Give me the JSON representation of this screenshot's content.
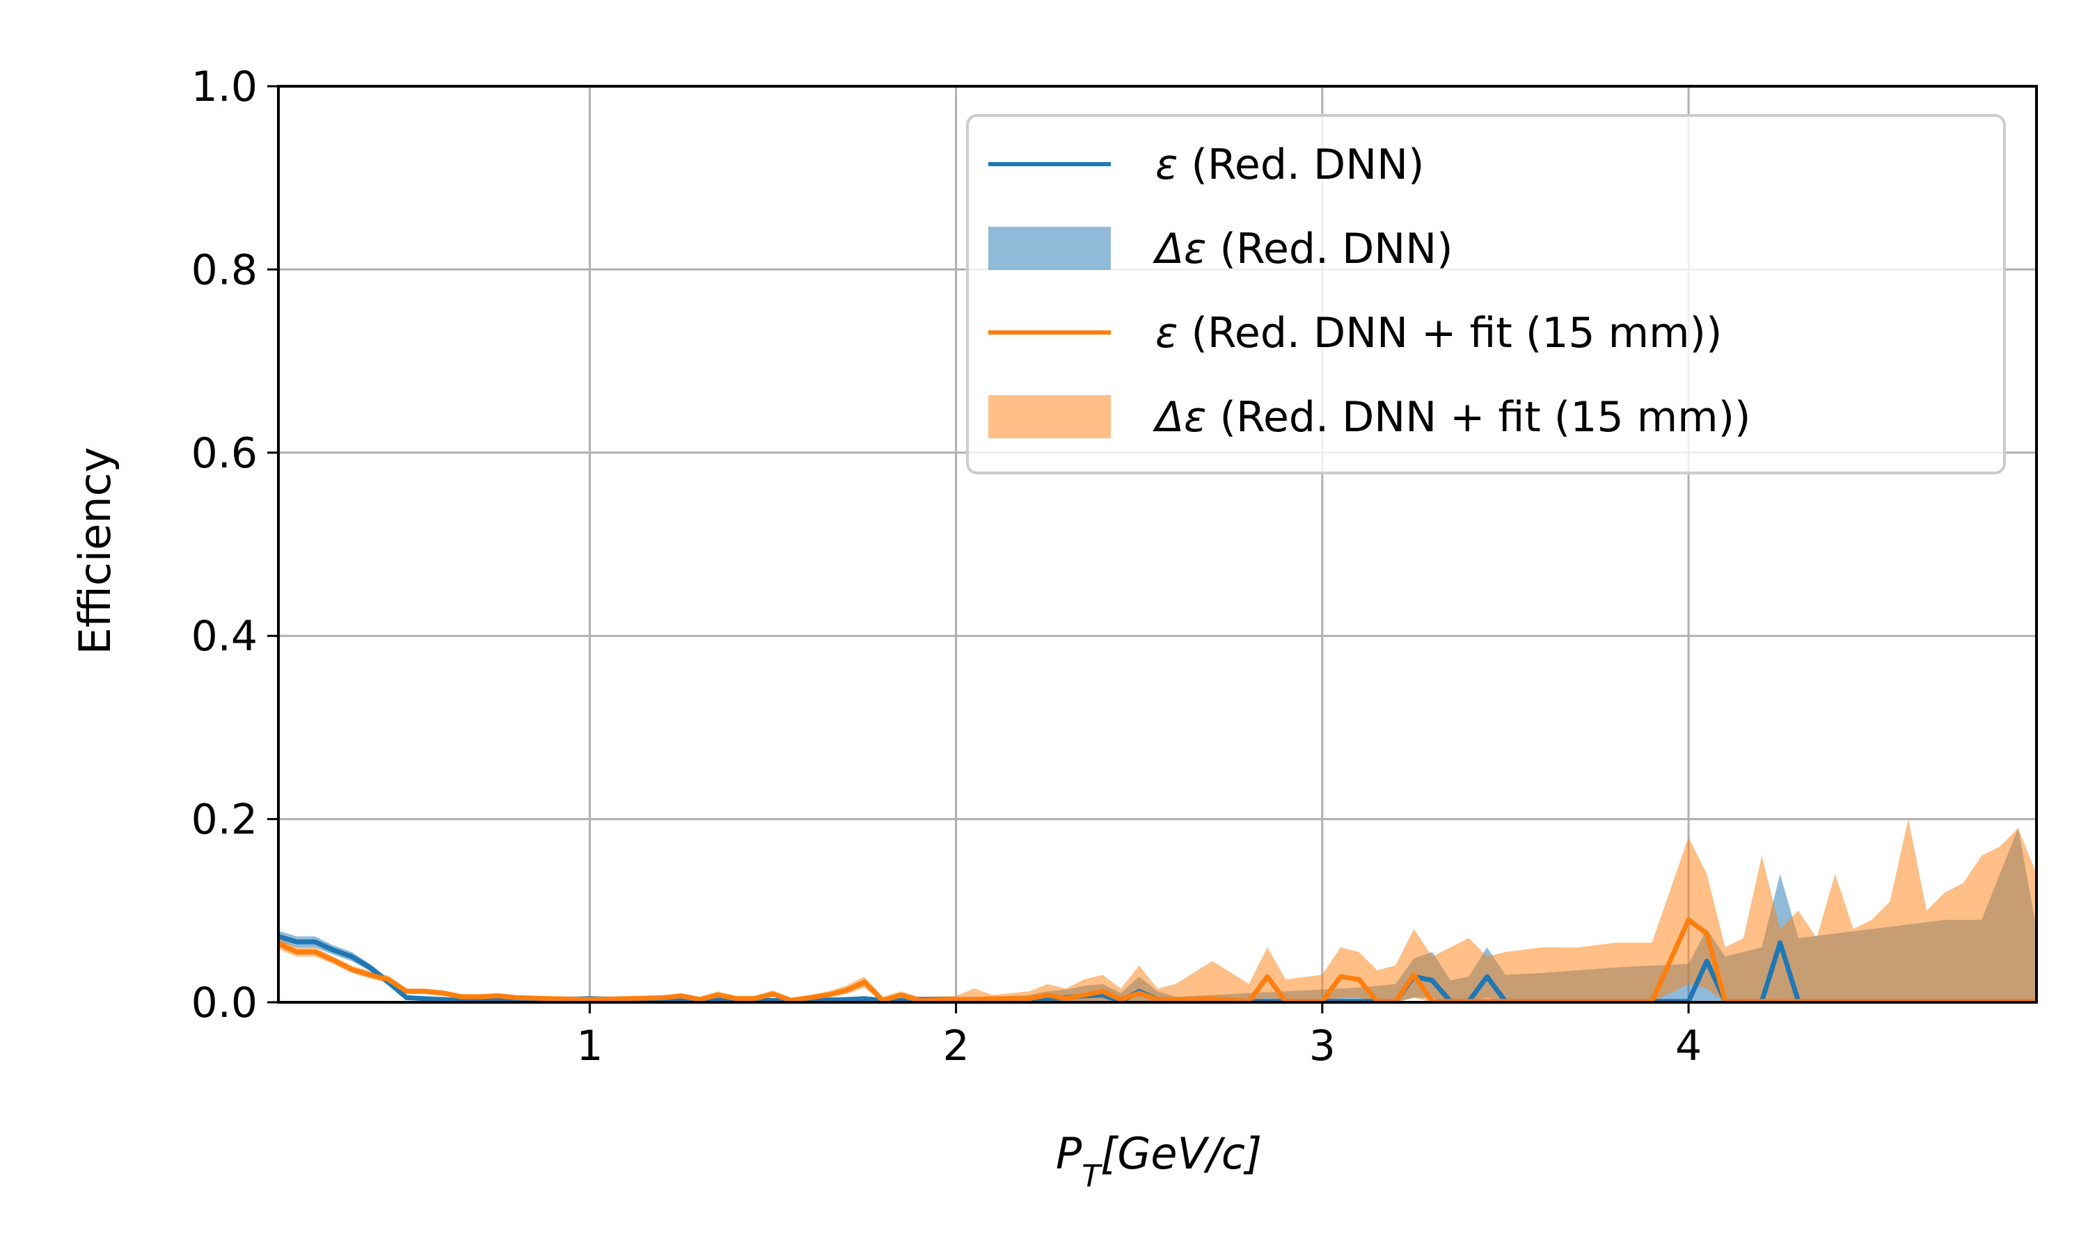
{
  "chart_data": {
    "type": "line",
    "title": "",
    "xlabel": "P_T[GeV/c]",
    "xlabel_main": "P",
    "xlabel_sub": "T",
    "xlabel_rest": "[GeV/c]",
    "ylabel": "Efficiency",
    "xlim": [
      0.15,
      4.95
    ],
    "ylim": [
      0.0,
      1.0
    ],
    "xticks": [
      1,
      2,
      3,
      4
    ],
    "xtick_labels": [
      "1",
      "2",
      "3",
      "4"
    ],
    "yticks": [
      0.0,
      0.2,
      0.4,
      0.6,
      0.8,
      1.0
    ],
    "ytick_labels": [
      "0.0",
      "0.2",
      "0.4",
      "0.6",
      "0.8",
      "1.0"
    ],
    "grid": true,
    "legend_position": "top-right",
    "legend": [
      {
        "symbol": "ε",
        "text": " (Red. DNN)",
        "kind": "line",
        "color": "#1f77b4"
      },
      {
        "symbol": "Δε",
        "text": " (Red. DNN)",
        "kind": "band",
        "color": "#1f77b4"
      },
      {
        "symbol": "ε",
        "text": " (Red. DNN + fit (15 mm))",
        "kind": "line",
        "color": "#ff7f0e"
      },
      {
        "symbol": "Δε",
        "text": " (Red. DNN + fit (15 mm))",
        "kind": "band",
        "color": "#ff7f0e"
      }
    ],
    "series": [
      {
        "label": "ε (Red. DNN)",
        "kind": "line",
        "color": "#1f77b4",
        "x": [
          0.15,
          0.2,
          0.25,
          0.3,
          0.35,
          0.4,
          0.45,
          0.5,
          0.55,
          0.6,
          0.65,
          0.7,
          0.75,
          0.8,
          0.9,
          1.0,
          1.1,
          1.2,
          1.3,
          1.4,
          1.5,
          1.6,
          1.7,
          1.75,
          1.8,
          1.85,
          1.9,
          2.0,
          2.1,
          2.2,
          2.25,
          2.3,
          2.35,
          2.4,
          2.45,
          2.5,
          2.55,
          2.6,
          2.7,
          2.8,
          2.9,
          3.0,
          3.1,
          3.2,
          3.25,
          3.3,
          3.35,
          3.4,
          3.45,
          3.5,
          3.6,
          3.7,
          3.8,
          3.9,
          4.0,
          4.05,
          4.1,
          4.2,
          4.25,
          4.3,
          4.4,
          4.5,
          4.6,
          4.7,
          4.8,
          4.9,
          4.95
        ],
        "y": [
          0.072,
          0.066,
          0.066,
          0.057,
          0.05,
          0.038,
          0.022,
          0.005,
          0.004,
          0.003,
          0.002,
          0.003,
          0.003,
          0.003,
          0.003,
          0.004,
          0.003,
          0.004,
          0.003,
          0.003,
          0.002,
          0.002,
          0.003,
          0.004,
          0.002,
          0.002,
          0.003,
          0.003,
          0.002,
          0.002,
          0.004,
          0.005,
          0.007,
          0.008,
          0.001,
          0.012,
          0.003,
          0.001,
          0.001,
          0.001,
          0.001,
          0.001,
          0.001,
          0.001,
          0.028,
          0.024,
          0.001,
          0.001,
          0.028,
          0.001,
          0.001,
          0.001,
          0.001,
          0.001,
          0.001,
          0.045,
          0.001,
          0.001,
          0.065,
          0.001,
          0.001,
          0.001,
          0.001,
          0.001,
          0.001,
          0.001,
          0.001
        ]
      },
      {
        "label": "Δε (Red. DNN)",
        "kind": "band",
        "color": "#1f77b4",
        "x": [
          0.15,
          0.2,
          0.25,
          0.3,
          0.35,
          0.4,
          0.45,
          0.5,
          0.55,
          0.6,
          0.65,
          0.7,
          0.75,
          0.8,
          0.9,
          1.0,
          1.1,
          1.2,
          1.3,
          1.4,
          1.5,
          1.6,
          1.7,
          1.75,
          1.8,
          1.85,
          1.9,
          2.0,
          2.1,
          2.2,
          2.25,
          2.3,
          2.35,
          2.4,
          2.45,
          2.5,
          2.55,
          2.6,
          2.7,
          2.8,
          2.9,
          3.0,
          3.1,
          3.2,
          3.25,
          3.3,
          3.35,
          3.4,
          3.45,
          3.5,
          3.6,
          3.7,
          3.8,
          3.9,
          4.0,
          4.05,
          4.1,
          4.2,
          4.25,
          4.3,
          4.4,
          4.5,
          4.6,
          4.7,
          4.8,
          4.9,
          4.95
        ],
        "low": [
          0.066,
          0.06,
          0.06,
          0.052,
          0.045,
          0.034,
          0.018,
          0.003,
          0.002,
          0.001,
          0.001,
          0.001,
          0.001,
          0.001,
          0.001,
          0.002,
          0.001,
          0.002,
          0.001,
          0.001,
          0.0,
          0.0,
          0.001,
          0.002,
          0.0,
          0.0,
          0.001,
          0.001,
          0.0,
          0.0,
          0.0,
          0.0,
          0.0,
          0.0,
          0.0,
          0.0,
          0.0,
          0.0,
          0.0,
          0.0,
          0.0,
          0.0,
          0.0,
          0.0,
          0.005,
          0.005,
          0.0,
          0.0,
          0.005,
          0.0,
          0.0,
          0.0,
          0.0,
          0.0,
          0.0,
          0.0,
          0.0,
          0.0,
          0.0,
          0.0,
          0.0,
          0.0,
          0.0,
          0.0,
          0.0,
          0.0,
          0.0
        ],
        "high": [
          0.078,
          0.072,
          0.072,
          0.062,
          0.055,
          0.042,
          0.026,
          0.008,
          0.006,
          0.005,
          0.004,
          0.005,
          0.005,
          0.005,
          0.005,
          0.006,
          0.005,
          0.006,
          0.005,
          0.005,
          0.004,
          0.004,
          0.005,
          0.006,
          0.004,
          0.004,
          0.006,
          0.006,
          0.006,
          0.008,
          0.012,
          0.014,
          0.018,
          0.02,
          0.01,
          0.028,
          0.012,
          0.006,
          0.008,
          0.01,
          0.012,
          0.014,
          0.016,
          0.02,
          0.048,
          0.055,
          0.024,
          0.028,
          0.06,
          0.03,
          0.032,
          0.035,
          0.038,
          0.04,
          0.042,
          0.08,
          0.05,
          0.06,
          0.14,
          0.07,
          0.075,
          0.08,
          0.085,
          0.09,
          0.09,
          0.19,
          0.08
        ]
      },
      {
        "label": "ε (Red. DNN + fit (15 mm))",
        "kind": "line",
        "color": "#ff7f0e",
        "x": [
          0.15,
          0.2,
          0.25,
          0.3,
          0.35,
          0.4,
          0.45,
          0.5,
          0.55,
          0.6,
          0.65,
          0.7,
          0.75,
          0.8,
          0.9,
          1.0,
          1.1,
          1.2,
          1.25,
          1.3,
          1.35,
          1.4,
          1.45,
          1.5,
          1.55,
          1.6,
          1.65,
          1.7,
          1.75,
          1.8,
          1.85,
          1.9,
          2.0,
          2.05,
          2.1,
          2.2,
          2.25,
          2.3,
          2.35,
          2.4,
          2.45,
          2.5,
          2.55,
          2.6,
          2.7,
          2.8,
          2.85,
          2.9,
          3.0,
          3.05,
          3.1,
          3.15,
          3.2,
          3.25,
          3.3,
          3.4,
          3.5,
          3.6,
          3.7,
          3.8,
          3.9,
          4.0,
          4.05,
          4.1,
          4.2,
          4.3,
          4.4,
          4.5,
          4.6,
          4.7,
          4.8,
          4.9,
          4.95
        ],
        "y": [
          0.064,
          0.055,
          0.055,
          0.046,
          0.036,
          0.03,
          0.025,
          0.012,
          0.012,
          0.01,
          0.006,
          0.006,
          0.007,
          0.005,
          0.004,
          0.003,
          0.004,
          0.005,
          0.007,
          0.003,
          0.008,
          0.004,
          0.004,
          0.009,
          0.002,
          0.005,
          0.008,
          0.013,
          0.022,
          0.002,
          0.008,
          0.002,
          0.003,
          0.003,
          0.004,
          0.004,
          0.008,
          0.004,
          0.008,
          0.012,
          0.003,
          0.01,
          0.003,
          0.003,
          0.004,
          0.001,
          0.028,
          0.001,
          0.001,
          0.028,
          0.025,
          0.001,
          0.001,
          0.03,
          0.001,
          0.001,
          0.001,
          0.001,
          0.001,
          0.001,
          0.001,
          0.09,
          0.075,
          0.001,
          0.001,
          0.001,
          0.001,
          0.001,
          0.001,
          0.001,
          0.001,
          0.001,
          0.001
        ]
      },
      {
        "label": "Δε (Red. DNN + fit (15 mm))",
        "kind": "band",
        "color": "#ff7f0e",
        "x": [
          0.15,
          0.2,
          0.25,
          0.3,
          0.35,
          0.4,
          0.45,
          0.5,
          0.55,
          0.6,
          0.65,
          0.7,
          0.75,
          0.8,
          0.9,
          1.0,
          1.1,
          1.2,
          1.25,
          1.3,
          1.35,
          1.4,
          1.45,
          1.5,
          1.55,
          1.6,
          1.65,
          1.7,
          1.75,
          1.8,
          1.85,
          1.9,
          2.0,
          2.05,
          2.1,
          2.2,
          2.25,
          2.3,
          2.35,
          2.4,
          2.45,
          2.5,
          2.55,
          2.6,
          2.7,
          2.8,
          2.85,
          2.9,
          3.0,
          3.05,
          3.1,
          3.15,
          3.2,
          3.25,
          3.3,
          3.4,
          3.45,
          3.5,
          3.6,
          3.7,
          3.8,
          3.9,
          4.0,
          4.05,
          4.1,
          4.15,
          4.2,
          4.25,
          4.3,
          4.35,
          4.4,
          4.45,
          4.5,
          4.55,
          4.6,
          4.65,
          4.7,
          4.75,
          4.8,
          4.85,
          4.9,
          4.95
        ],
        "low": [
          0.058,
          0.05,
          0.05,
          0.042,
          0.032,
          0.026,
          0.021,
          0.009,
          0.009,
          0.007,
          0.004,
          0.004,
          0.005,
          0.003,
          0.002,
          0.001,
          0.002,
          0.003,
          0.004,
          0.001,
          0.005,
          0.002,
          0.002,
          0.006,
          0.0,
          0.003,
          0.005,
          0.009,
          0.016,
          0.0,
          0.005,
          0.0,
          0.0,
          0.0,
          0.0,
          0.0,
          0.0,
          0.0,
          0.0,
          0.0,
          0.0,
          0.0,
          0.0,
          0.0,
          0.0,
          0.0,
          0.005,
          0.0,
          0.0,
          0.005,
          0.005,
          0.0,
          0.0,
          0.005,
          0.0,
          0.0,
          0.0,
          0.0,
          0.0,
          0.0,
          0.0,
          0.0,
          0.02,
          0.015,
          0.0,
          0.0,
          0.0,
          0.0,
          0.0,
          0.0,
          0.0,
          0.0,
          0.0,
          0.0,
          0.0,
          0.0,
          0.0,
          0.0,
          0.0,
          0.0,
          0.0,
          0.0
        ],
        "high": [
          0.07,
          0.06,
          0.06,
          0.05,
          0.04,
          0.034,
          0.029,
          0.015,
          0.015,
          0.013,
          0.009,
          0.009,
          0.01,
          0.008,
          0.006,
          0.005,
          0.006,
          0.007,
          0.01,
          0.006,
          0.012,
          0.007,
          0.007,
          0.013,
          0.005,
          0.008,
          0.012,
          0.018,
          0.028,
          0.006,
          0.012,
          0.006,
          0.007,
          0.015,
          0.008,
          0.012,
          0.02,
          0.015,
          0.025,
          0.03,
          0.015,
          0.04,
          0.015,
          0.02,
          0.045,
          0.02,
          0.06,
          0.025,
          0.03,
          0.06,
          0.055,
          0.035,
          0.04,
          0.08,
          0.05,
          0.07,
          0.05,
          0.055,
          0.06,
          0.06,
          0.065,
          0.065,
          0.18,
          0.14,
          0.06,
          0.07,
          0.16,
          0.08,
          0.1,
          0.07,
          0.14,
          0.08,
          0.09,
          0.11,
          0.2,
          0.1,
          0.12,
          0.13,
          0.16,
          0.17,
          0.19,
          0.14
        ]
      }
    ]
  }
}
